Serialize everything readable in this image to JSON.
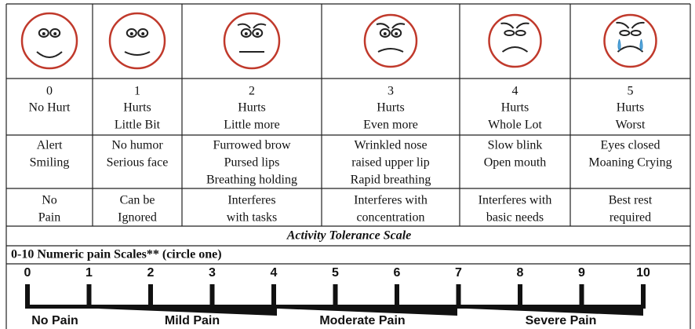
{
  "table": {
    "columns": [
      {
        "score": 0,
        "label": [
          "No Hurt"
        ],
        "description": [
          "Alert",
          "Smiling"
        ],
        "activity": [
          "No",
          "Pain"
        ]
      },
      {
        "score": 1,
        "label": [
          "Hurts",
          "Little Bit"
        ],
        "description": [
          "No humor",
          "Serious face"
        ],
        "activity": [
          "Can be",
          "Ignored"
        ]
      },
      {
        "score": 2,
        "label": [
          "Hurts",
          "Little more"
        ],
        "description": [
          "Furrowed brow",
          "Pursed lips",
          "Breathing holding"
        ],
        "activity": [
          "Interferes",
          "with tasks"
        ]
      },
      {
        "score": 3,
        "label": [
          "Hurts",
          "Even more"
        ],
        "description": [
          "Wrinkled nose",
          "raised upper lip",
          "Rapid breathing"
        ],
        "activity": [
          "Interferes with",
          "concentration"
        ]
      },
      {
        "score": 4,
        "label": [
          "Hurts",
          "Whole Lot"
        ],
        "description": [
          "Slow blink",
          "Open mouth"
        ],
        "activity": [
          "Interferes with",
          "basic needs"
        ]
      },
      {
        "score": 5,
        "label": [
          "Hurts",
          "Worst"
        ],
        "description": [
          "Eyes closed",
          "Moaning Crying"
        ],
        "activity": [
          "Best rest",
          "required"
        ]
      }
    ],
    "activity_tolerance_title": "Activity Tolerance Scale"
  },
  "numeric_scale": {
    "title": "0-10 Numeric pain Scales** (circle one)",
    "ticks": [
      0,
      1,
      2,
      3,
      4,
      5,
      6,
      7,
      8,
      9,
      10
    ],
    "ranges": [
      "No Pain",
      "Mild Pain",
      "Moderate Pain",
      "Severe Pain"
    ]
  }
}
